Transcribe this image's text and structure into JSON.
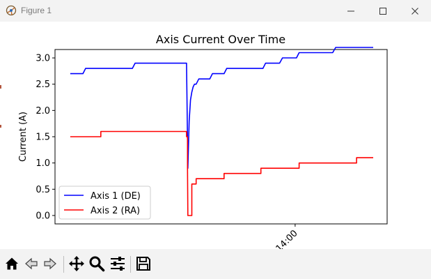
{
  "window": {
    "title": "Figure 1"
  },
  "titlebar_icons": [
    "figure-app-icon",
    "minimize-icon",
    "maximize-icon",
    "close-icon"
  ],
  "toolbar": {
    "buttons": [
      "home-icon",
      "back-icon",
      "forward-icon",
      "pan-icon",
      "zoom-icon",
      "configure-subplots-icon",
      "save-icon"
    ]
  },
  "colors": {
    "axis1": "#0000ff",
    "axis2": "#ff0000",
    "titlebar": "#f3f3f3"
  },
  "chart_data": {
    "type": "line",
    "title": "Axis Current Over Time",
    "xlabel": "",
    "ylabel": "Current (A)",
    "xlim": [
      0,
      100
    ],
    "ylim": [
      -0.16,
      3.16
    ],
    "yticks": [
      0.0,
      0.5,
      1.0,
      1.5,
      2.0,
      2.5,
      3.0
    ],
    "ytick_labels": [
      "0.0",
      "0.5",
      "1.0",
      "1.5",
      "2.0",
      "2.5",
      "3.0"
    ],
    "xticks": [
      72.3
    ],
    "xtick_labels": [
      "14:00"
    ],
    "legend": {
      "position": "lower-left",
      "entries": [
        "Axis 1 (DE)",
        "Axis 2 (RA)"
      ]
    },
    "series": [
      {
        "name": "Axis 1 (DE)",
        "color": "#0000ff",
        "x": [
          4.6,
          8.4,
          9.2,
          23.3,
          24.1,
          39.6,
          40.0,
          40.4,
          40.8,
          41.2,
          41.6,
          42.0,
          42.5,
          43.3,
          44.1,
          44.9,
          46.6,
          47.4,
          50.9,
          51.7,
          55.0,
          55.9,
          62.6,
          63.4,
          67.6,
          68.5,
          72.7,
          73.5,
          83.6,
          84.5,
          95.8
        ],
        "y": [
          2.7,
          2.7,
          2.8,
          2.8,
          2.9,
          2.9,
          0.9,
          1.8,
          2.2,
          2.35,
          2.45,
          2.5,
          2.5,
          2.6,
          2.6,
          2.6,
          2.6,
          2.7,
          2.7,
          2.8,
          2.8,
          2.8,
          2.8,
          2.9,
          2.9,
          3.0,
          3.0,
          3.1,
          3.1,
          3.2,
          3.2
        ]
      },
      {
        "name": "Axis 2 (RA)",
        "color": "#ff0000",
        "x": [
          4.6,
          13.8,
          13.8,
          39.6,
          39.6,
          39.9,
          39.9,
          40.0,
          41.2,
          41.2,
          42.5,
          42.5,
          50.9,
          50.9,
          62.0,
          62.0,
          73.5,
          73.5,
          90.8,
          90.8,
          95.8
        ],
        "y": [
          1.5,
          1.5,
          1.6,
          1.6,
          1.5,
          1.5,
          0.9,
          0.0,
          0.0,
          0.6,
          0.6,
          0.7,
          0.7,
          0.8,
          0.8,
          0.9,
          0.9,
          1.0,
          1.0,
          1.1,
          1.1
        ]
      }
    ]
  }
}
